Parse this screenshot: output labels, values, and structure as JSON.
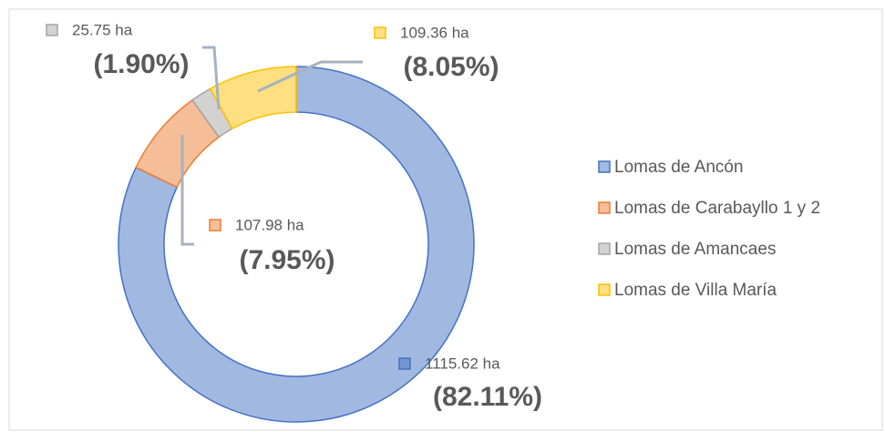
{
  "chart_data": {
    "type": "donut",
    "categories": [
      "Lomas de Ancón",
      "Lomas de Carabayllo 1 y 2",
      "Lomas de Amancaes",
      "Lomas de Villa María"
    ],
    "values": [
      1115.62,
      107.98,
      25.75,
      109.36
    ],
    "value_labels": [
      "1115.62 ha",
      "107.98 ha",
      "25.75 ha",
      "109.36 ha"
    ],
    "percent_labels": [
      "(82.11%)",
      "(7.95%)",
      "(1.90%)",
      "(8.05%)"
    ],
    "colors": [
      "#4472c4",
      "#ed7d31",
      "#a5a5a5",
      "#ffc000"
    ],
    "legend": "right"
  }
}
